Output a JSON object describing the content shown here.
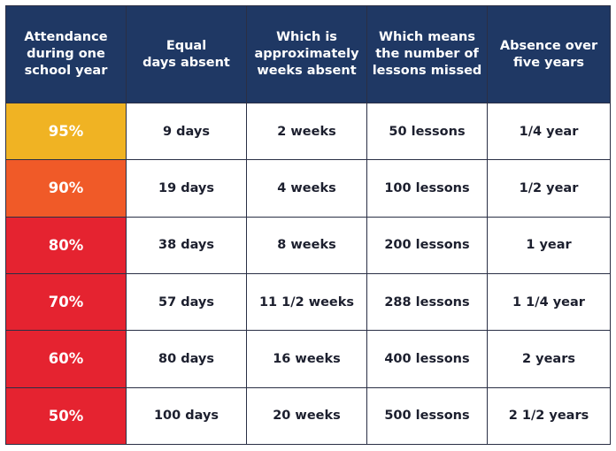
{
  "headers": [
    [
      "Attendance",
      "during one",
      "school year"
    ],
    [
      "Equal",
      "days absent"
    ],
    [
      "Which is",
      "approximately",
      "weeks absent"
    ],
    [
      "Which means",
      "the number of",
      "lessons missed"
    ],
    [
      "Absence over",
      "five years"
    ]
  ],
  "rows": [
    {
      "attendance": "95%",
      "color": "#f0b323",
      "days": "9 days",
      "weeks": "2 weeks",
      "lessons": "50 lessons",
      "five_years": "1/4 year"
    },
    {
      "attendance": "90%",
      "color": "#f05a28",
      "days": "19 days",
      "weeks": "4 weeks",
      "lessons": "100 lessons",
      "five_years": "1/2 year"
    },
    {
      "attendance": "80%",
      "color": "#e52330",
      "days": "38 days",
      "weeks": "8 weeks",
      "lessons": "200 lessons",
      "five_years": "1 year"
    },
    {
      "attendance": "70%",
      "color": "#e52330",
      "days": "57 days",
      "weeks": "11 1/2 weeks",
      "lessons": "288 lessons",
      "five_years": "1 1/4 year"
    },
    {
      "attendance": "60%",
      "color": "#e52330",
      "days": "80 days",
      "weeks": "16 weeks",
      "lessons": "400 lessons",
      "five_years": "2 years"
    },
    {
      "attendance": "50%",
      "color": "#e52330",
      "days": "100 days",
      "weeks": "20 weeks",
      "lessons": "500 lessons",
      "five_years": "2 1/2 years"
    }
  ],
  "colors": {
    "header_bg": "#1f3864",
    "border": "#2a2f45",
    "text": "#1c1f2e"
  }
}
